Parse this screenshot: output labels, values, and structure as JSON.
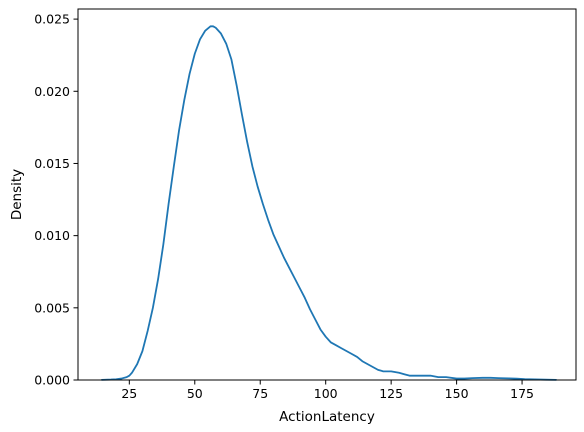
{
  "chart_data": {
    "type": "line",
    "title": "",
    "xlabel": "ActionLatency",
    "ylabel": "Density",
    "xlim": [
      5.4,
      195.6
    ],
    "ylim": [
      0,
      0.0257
    ],
    "xticks": [
      25,
      50,
      75,
      100,
      125,
      150,
      175
    ],
    "xtick_labels": [
      "25",
      "50",
      "75",
      "100",
      "125",
      "150",
      "175"
    ],
    "yticks": [
      0.0,
      0.005,
      0.01,
      0.015,
      0.02,
      0.025
    ],
    "ytick_labels": [
      "0.000",
      "0.005",
      "0.010",
      "0.015",
      "0.020",
      "0.025"
    ],
    "grid": false,
    "series": [
      {
        "color": "#1f77b4",
        "x": [
          14.5,
          18,
          20,
          22,
          24,
          25,
          26,
          28,
          30,
          32,
          34,
          36,
          38,
          40,
          42,
          44,
          46,
          48,
          50,
          52,
          54,
          56,
          57,
          58,
          60,
          62,
          64,
          66,
          68,
          70,
          72,
          74,
          76,
          78,
          80,
          82,
          84,
          86,
          88,
          90,
          92,
          94,
          96,
          98,
          100,
          102,
          104,
          106,
          108,
          110,
          112,
          114,
          116,
          118,
          120,
          122,
          125,
          128,
          130,
          132,
          135,
          138,
          140,
          143,
          146,
          150,
          153,
          156,
          160,
          163,
          166,
          170,
          173,
          176,
          180,
          184,
          188
        ],
        "y": [
          1e-05,
          3e-05,
          5e-05,
          0.0001,
          0.0002,
          0.0003,
          0.0005,
          0.0011,
          0.002,
          0.0034,
          0.005,
          0.007,
          0.0094,
          0.0122,
          0.0148,
          0.0173,
          0.0194,
          0.0212,
          0.0226,
          0.0236,
          0.0242,
          0.0245,
          0.0245,
          0.0244,
          0.024,
          0.0233,
          0.0222,
          0.0204,
          0.0184,
          0.0165,
          0.0148,
          0.0134,
          0.0122,
          0.0111,
          0.0101,
          0.0093,
          0.0085,
          0.0078,
          0.0071,
          0.0064,
          0.0057,
          0.0049,
          0.0042,
          0.0035,
          0.003,
          0.0026,
          0.0024,
          0.0022,
          0.002,
          0.0018,
          0.0016,
          0.0013,
          0.0011,
          0.0009,
          0.0007,
          0.0006,
          0.0006,
          0.0005,
          0.0004,
          0.0003,
          0.0003,
          0.0003,
          0.0003,
          0.0002,
          0.0002,
          0.0001,
          0.0001,
          0.00013,
          0.00015,
          0.00015,
          0.00013,
          0.00011,
          9e-05,
          6e-05,
          4e-05,
          2e-05,
          1e-05
        ]
      }
    ]
  }
}
